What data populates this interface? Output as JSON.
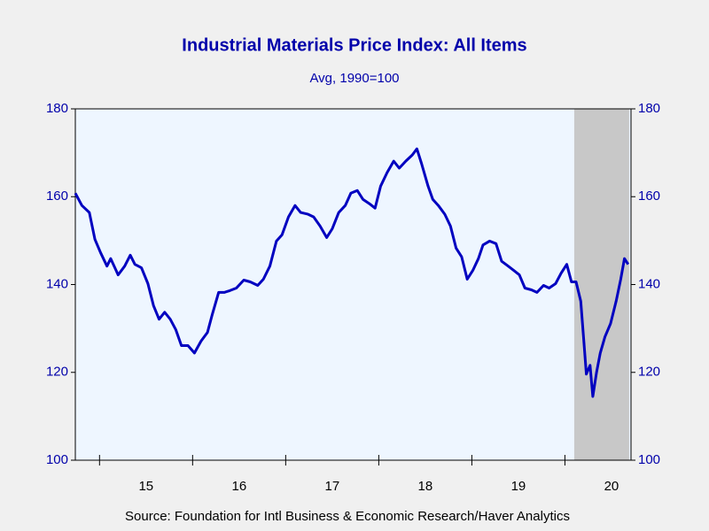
{
  "chart_data": {
    "type": "line",
    "title": "Industrial Materials Price Index: All Items",
    "subtitle": "Avg, 1990=100",
    "source": "Source:  Foundation for Intl Business & Economic Research/Haver Analytics",
    "x": [
      2014.74,
      2014.81,
      2014.89,
      2014.95,
      2015.01,
      2015.08,
      2015.12,
      2015.2,
      2015.27,
      2015.33,
      2015.38,
      2015.45,
      2015.52,
      2015.58,
      2015.64,
      2015.7,
      2015.76,
      2015.82,
      2015.88,
      2015.95,
      2016.02,
      2016.09,
      2016.16,
      2016.21,
      2016.28,
      2016.34,
      2016.4,
      2016.47,
      2016.55,
      2016.62,
      2016.7,
      2016.76,
      2016.83,
      2016.9,
      2016.96,
      2017.03,
      2017.1,
      2017.16,
      2017.24,
      2017.3,
      2017.37,
      2017.44,
      2017.5,
      2017.57,
      2017.64,
      2017.7,
      2017.77,
      2017.83,
      2017.9,
      2017.96,
      2018.02,
      2018.09,
      2018.16,
      2018.22,
      2018.29,
      2018.36,
      2018.41,
      2018.46,
      2018.53,
      2018.58,
      2018.64,
      2018.71,
      2018.77,
      2018.83,
      2018.89,
      2018.95,
      2019.01,
      2019.07,
      2019.12,
      2019.19,
      2019.26,
      2019.32,
      2019.39,
      2019.45,
      2019.51,
      2019.57,
      2019.64,
      2019.7,
      2019.77,
      2019.83,
      2019.9,
      2019.96,
      2020.02,
      2020.07,
      2020.12,
      2020.17,
      2020.2,
      2020.23,
      2020.27,
      2020.3,
      2020.34,
      2020.38,
      2020.43,
      2020.49,
      2020.55,
      2020.6,
      2020.64,
      2020.68
    ],
    "series": [
      {
        "name": "Industrial Materials Price Index: All Items",
        "color": "#0000c0",
        "values": [
          160.8,
          158,
          156.4,
          150.3,
          147.3,
          144.2,
          145.9,
          142.2,
          144.2,
          146.7,
          144.6,
          143.8,
          140.2,
          135.2,
          132.1,
          133.7,
          132.1,
          129.7,
          126.1,
          126.1,
          124.4,
          127.1,
          129.1,
          133.1,
          138.2,
          138.2,
          138.6,
          139.2,
          141.0,
          140.6,
          139.8,
          141.2,
          144.2,
          149.9,
          151.3,
          155.4,
          158,
          156.4,
          156,
          155.4,
          153.3,
          150.7,
          152.7,
          156.4,
          158,
          160.8,
          161.4,
          159.4,
          158.4,
          157.4,
          162.4,
          165.5,
          168.1,
          166.5,
          168.1,
          169.5,
          170.9,
          167.5,
          162.4,
          159.4,
          158,
          156,
          153.3,
          148.3,
          146.3,
          141.2,
          143.2,
          145.9,
          149,
          149.9,
          149.3,
          145.3,
          144.2,
          143.2,
          142.2,
          139.2,
          138.8,
          138.2,
          139.8,
          139.2,
          140.2,
          142.6,
          144.6,
          140.6,
          140.6,
          136.2,
          128.1,
          119.6,
          121.6,
          114.5,
          120,
          124.4,
          128.1,
          131.1,
          136.2,
          141.2,
          145.9,
          144.6
        ]
      }
    ],
    "xlim": [
      2014.74,
      2020.71
    ],
    "xticks": [
      {
        "value": 2015,
        "label": "15"
      },
      {
        "value": 2016,
        "label": "16"
      },
      {
        "value": 2017,
        "label": "17"
      },
      {
        "value": 2018,
        "label": "18"
      },
      {
        "value": 2019,
        "label": "19"
      },
      {
        "value": 2020,
        "label": "20"
      }
    ],
    "ylim": [
      100,
      180
    ],
    "yticks": [
      100,
      120,
      140,
      160,
      180
    ],
    "y2lim": [
      100,
      180
    ],
    "y2ticks": [
      100,
      120,
      140,
      160,
      180
    ],
    "recession": {
      "start": 2020.1,
      "end": 2020.69,
      "color": "#c8c8c8"
    },
    "plot_background": "#eef6ff"
  }
}
